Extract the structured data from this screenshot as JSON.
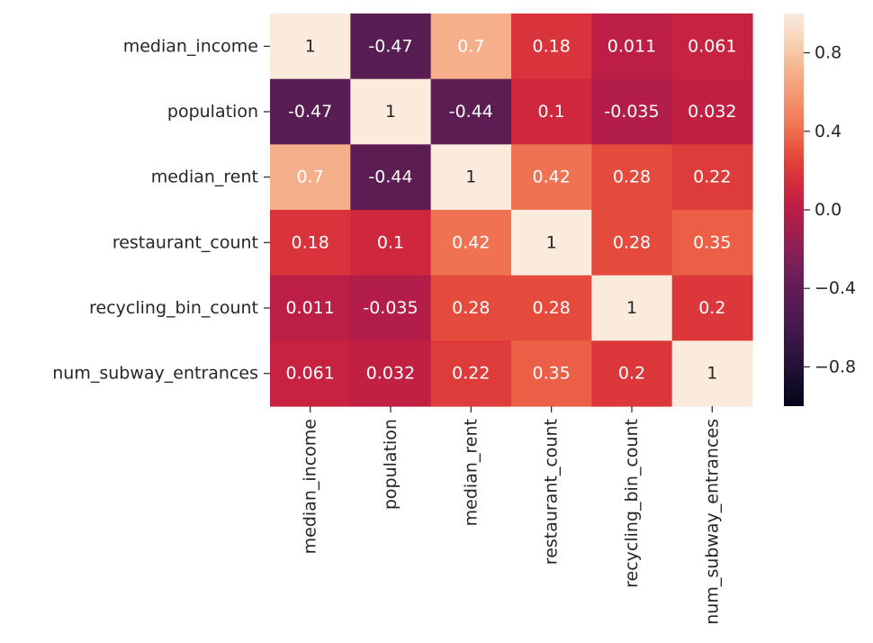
{
  "chart_data": {
    "type": "heatmap",
    "colormap": "rocket",
    "vmin": -1,
    "vmax": 1,
    "annotated": true,
    "rows": [
      "median_income",
      "population",
      "median_rent",
      "restaurant_count",
      "recycling_bin_count",
      "num_subway_entrances"
    ],
    "columns": [
      "median_income",
      "population",
      "median_rent",
      "restaurant_count",
      "recycling_bin_count",
      "num_subway_entrances"
    ],
    "values": [
      [
        1,
        -0.47,
        0.7,
        0.18,
        0.011,
        0.061
      ],
      [
        -0.47,
        1,
        -0.44,
        0.1,
        -0.035,
        0.032
      ],
      [
        0.7,
        -0.44,
        1,
        0.42,
        0.28,
        0.22
      ],
      [
        0.18,
        0.1,
        0.42,
        1,
        0.28,
        0.35
      ],
      [
        0.011,
        -0.035,
        0.28,
        0.28,
        1,
        0.2
      ],
      [
        0.061,
        0.032,
        0.22,
        0.35,
        0.2,
        1
      ]
    ],
    "value_labels": [
      [
        "1",
        "-0.47",
        "0.7",
        "0.18",
        "0.011",
        "0.061"
      ],
      [
        "-0.47",
        "1",
        "-0.44",
        "0.1",
        "-0.035",
        "0.032"
      ],
      [
        "0.7",
        "-0.44",
        "1",
        "0.42",
        "0.28",
        "0.22"
      ],
      [
        "0.18",
        "0.1",
        "0.42",
        "1",
        "0.28",
        "0.35"
      ],
      [
        "0.011",
        "-0.035",
        "0.28",
        "0.28",
        "1",
        "0.2"
      ],
      [
        "0.061",
        "0.032",
        "0.22",
        "0.35",
        "0.2",
        "1"
      ]
    ],
    "colorbar": {
      "ticks": [
        0.8,
        0.4,
        0.0,
        -0.4,
        -0.8
      ],
      "tick_labels": [
        "0.8",
        "0.4",
        "0.0",
        "−0.4",
        "−0.8"
      ]
    },
    "title": "",
    "xlabel": "",
    "ylabel": "",
    "legend": "colorbar-right"
  }
}
